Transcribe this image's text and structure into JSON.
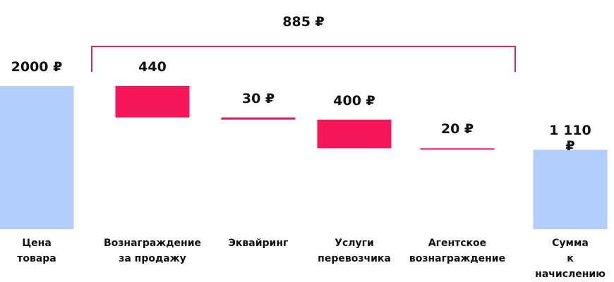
{
  "chart_data": {
    "type": "waterfall",
    "categories": [
      "Цена\nтовара",
      "Вознаграждение\nза продажу",
      "Эквайринг",
      "Услуги\nперевозчика",
      "Агентское\nвознаграждение",
      "Сумма\nк начислению"
    ],
    "values": [
      2000,
      440,
      30,
      400,
      20,
      1110
    ],
    "value_labels": [
      "2000 ₽",
      "440",
      "30 ₽",
      "400 ₽",
      "20 ₽",
      "1 110 ₽"
    ],
    "measure": [
      "total",
      "decrease",
      "decrease",
      "decrease",
      "decrease",
      "total"
    ],
    "total_color": "#b3cdfc",
    "decrease_color": "#f5175a",
    "bracket_color": "#e0245e",
    "annotation": "885 ₽"
  }
}
